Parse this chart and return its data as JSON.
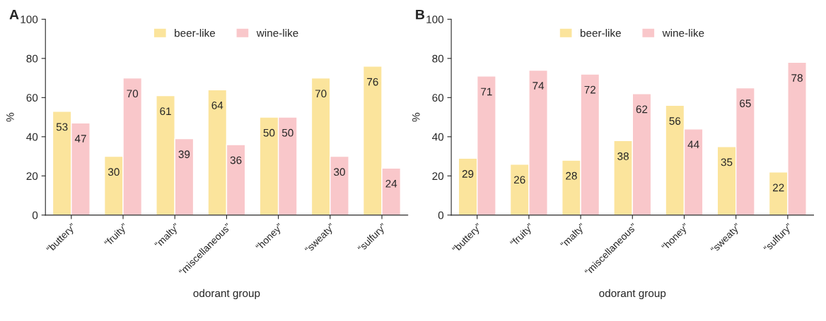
{
  "chart_data": [
    {
      "type": "bar",
      "title": "A",
      "xlabel": "odorant group",
      "ylabel": "%",
      "categories": [
        "“buttery”",
        "“fruity”",
        "“malty”",
        "“miscellaneous”",
        "“honey”",
        "“sweaty”",
        "“sulfury”"
      ],
      "series": [
        {
          "name": "beer-like",
          "color": "#fbe49c",
          "values": [
            53,
            30,
            61,
            64,
            50,
            70,
            76
          ]
        },
        {
          "name": "wine-like",
          "color": "#f9c7ca",
          "values": [
            47,
            70,
            39,
            36,
            50,
            30,
            24
          ]
        }
      ],
      "ylim": [
        0,
        100
      ],
      "yticks": [
        0,
        20,
        40,
        60,
        80,
        100
      ],
      "data_labels": true,
      "legend": "top",
      "grid": false
    },
    {
      "type": "bar",
      "title": "B",
      "xlabel": "odorant group",
      "ylabel": "%",
      "categories": [
        "“buttery”",
        "“fruity”",
        "“malty”",
        "“miscellaneous”",
        "“honey”",
        "“sweaty”",
        "“sulfury”"
      ],
      "series": [
        {
          "name": "beer-like",
          "color": "#fbe49c",
          "values": [
            29,
            26,
            28,
            38,
            56,
            35,
            22
          ]
        },
        {
          "name": "wine-like",
          "color": "#f9c7ca",
          "values": [
            71,
            74,
            72,
            62,
            44,
            65,
            78
          ]
        }
      ],
      "ylim": [
        0,
        100
      ],
      "yticks": [
        0,
        20,
        40,
        60,
        80,
        100
      ],
      "data_labels": true,
      "legend": "top",
      "grid": false
    }
  ]
}
